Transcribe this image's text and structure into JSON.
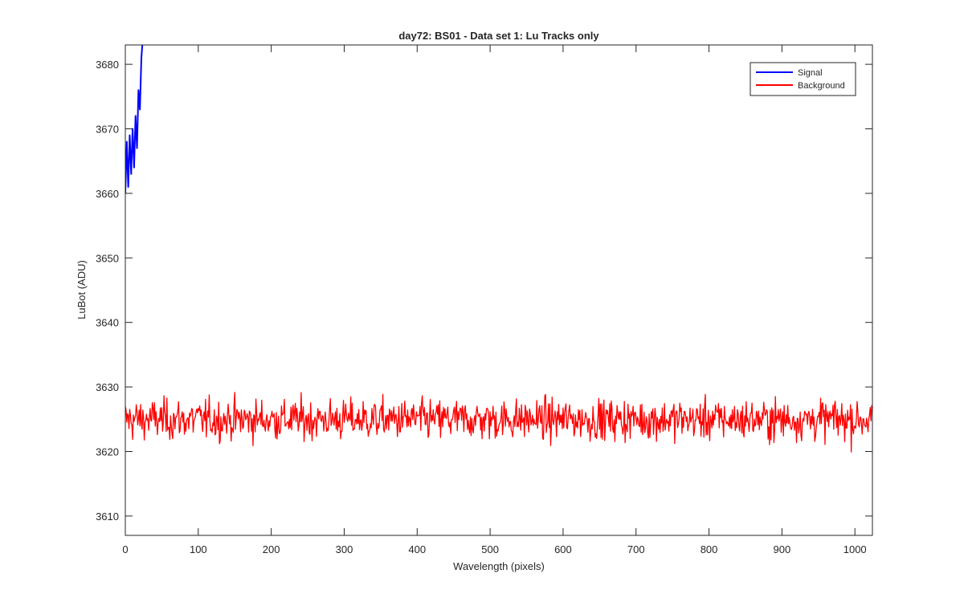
{
  "chart_data": {
    "type": "line",
    "title": "day72: BS01 - Data set 1: Lu Tracks only",
    "xlabel": "Wavelength (pixels)",
    "ylabel": "LuBot (ADU)",
    "xlim": [
      0,
      1024
    ],
    "ylim": [
      3607,
      3683
    ],
    "xticks": [
      0,
      100,
      200,
      300,
      400,
      500,
      600,
      700,
      800,
      900,
      1000
    ],
    "yticks": [
      3610,
      3620,
      3630,
      3640,
      3650,
      3660,
      3670,
      3680
    ],
    "grid": false,
    "legend_position": "top-right",
    "series": [
      {
        "name": "Signal",
        "color": "#0000ff",
        "x": [
          0,
          2,
          4,
          6,
          8,
          10,
          12,
          14,
          16,
          18,
          20,
          22,
          24
        ],
        "y": [
          3660,
          3668,
          3661,
          3669,
          3663,
          3670,
          3664,
          3672,
          3667,
          3676,
          3673,
          3681,
          3684
        ]
      },
      {
        "name": "Background",
        "color": "#ff0000",
        "x_range": [
          0,
          1024
        ],
        "mean": 3625,
        "noise_min": 3617,
        "noise_max": 3632.5
      }
    ]
  }
}
